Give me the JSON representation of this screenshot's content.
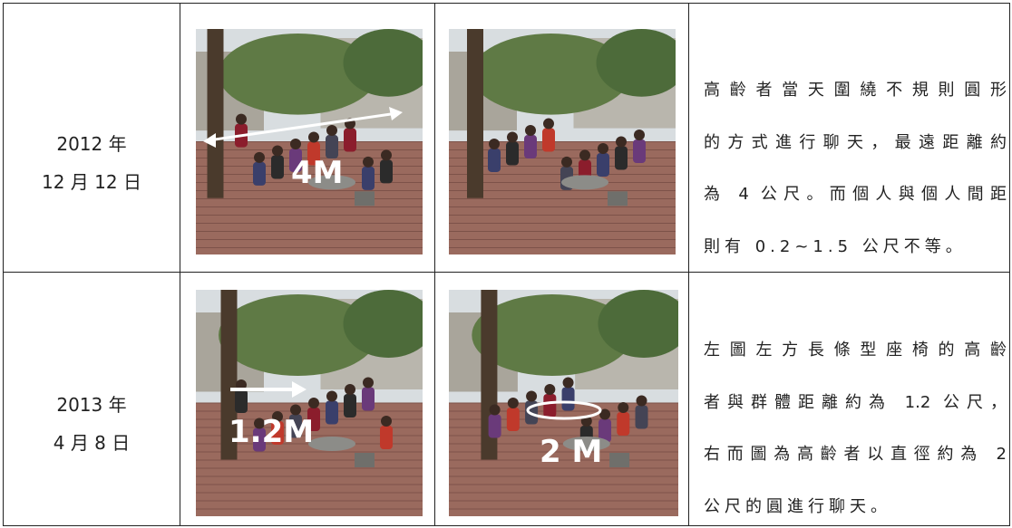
{
  "table": {
    "rows": [
      {
        "date": [
          "2012 年",
          "12 月 12 日"
        ],
        "left_photo_label": "4M",
        "description": [
          "高齡者當天圍繞不規則圓形",
          "的方式進行聊天，最遠距離約",
          "為 4 公尺。而個人與個人間距",
          "則有 0.2~1.5 公尺不等。"
        ]
      },
      {
        "date": [
          "2013 年",
          "4 月 8 日"
        ],
        "left_photo_label": "1.2M",
        "right_photo_label": "2 M",
        "description": [
          "左圖左方長條型座椅的高齡",
          "者與群體距離約為 1.2 公尺，",
          "右而圖為高齡者以直徑約為 2",
          "公尺的圓進行聊天。"
        ]
      }
    ]
  }
}
